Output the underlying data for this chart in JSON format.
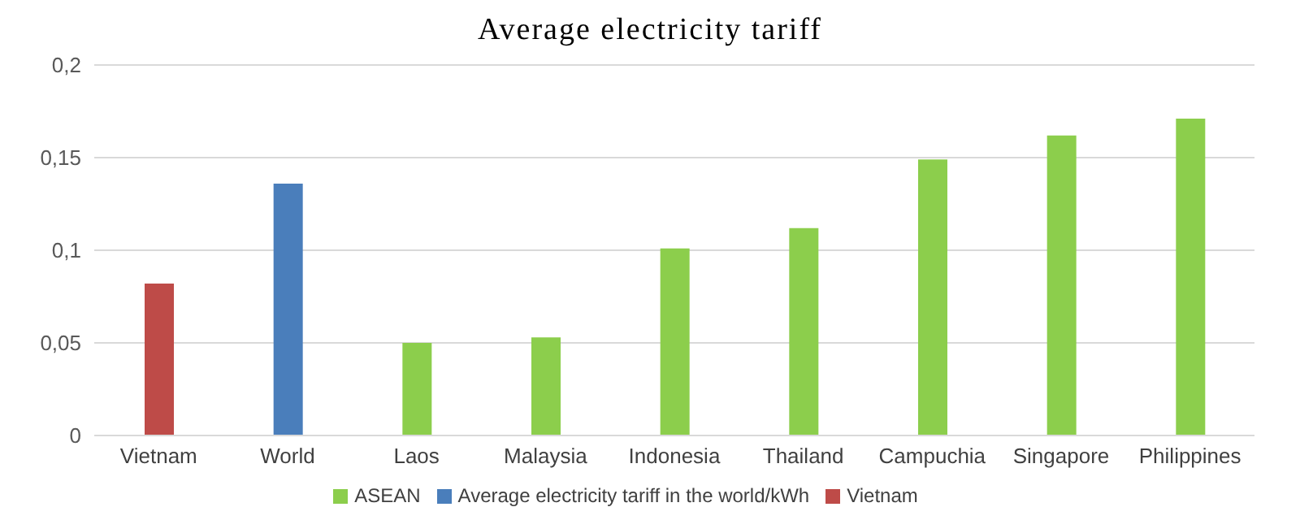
{
  "chart_data": {
    "type": "bar",
    "title": "Average electricity tariff",
    "categories": [
      "Vietnam",
      "World",
      "Laos",
      "Malaysia",
      "Indonesia",
      "Thailand",
      "Campuchia",
      "Singapore",
      "Philippines"
    ],
    "series": [
      {
        "name": "Average electricity tariff in the world/kWh",
        "color": "#4a7ebb",
        "values": [
          null,
          0.136,
          null,
          null,
          null,
          null,
          null,
          null,
          null
        ]
      },
      {
        "name": "Vietnam",
        "color": "#be4b48",
        "values": [
          0.082,
          null,
          null,
          null,
          null,
          null,
          null,
          null,
          null
        ]
      },
      {
        "name": "ASEAN",
        "color": "#8cce4c",
        "values": [
          null,
          null,
          0.05,
          0.053,
          0.101,
          0.112,
          0.149,
          0.162,
          0.171
        ]
      }
    ],
    "ylim": [
      0,
      0.2
    ],
    "yticks": [
      0,
      {
        "value": 0.05,
        "label": "0,05"
      },
      {
        "value": 0.1,
        "label": "0,1"
      },
      {
        "value": 0.15,
        "label": "0,15"
      },
      {
        "value": 0.2,
        "label": "0,2"
      }
    ],
    "grid": "y",
    "legend": "bottom",
    "stacked": true
  }
}
